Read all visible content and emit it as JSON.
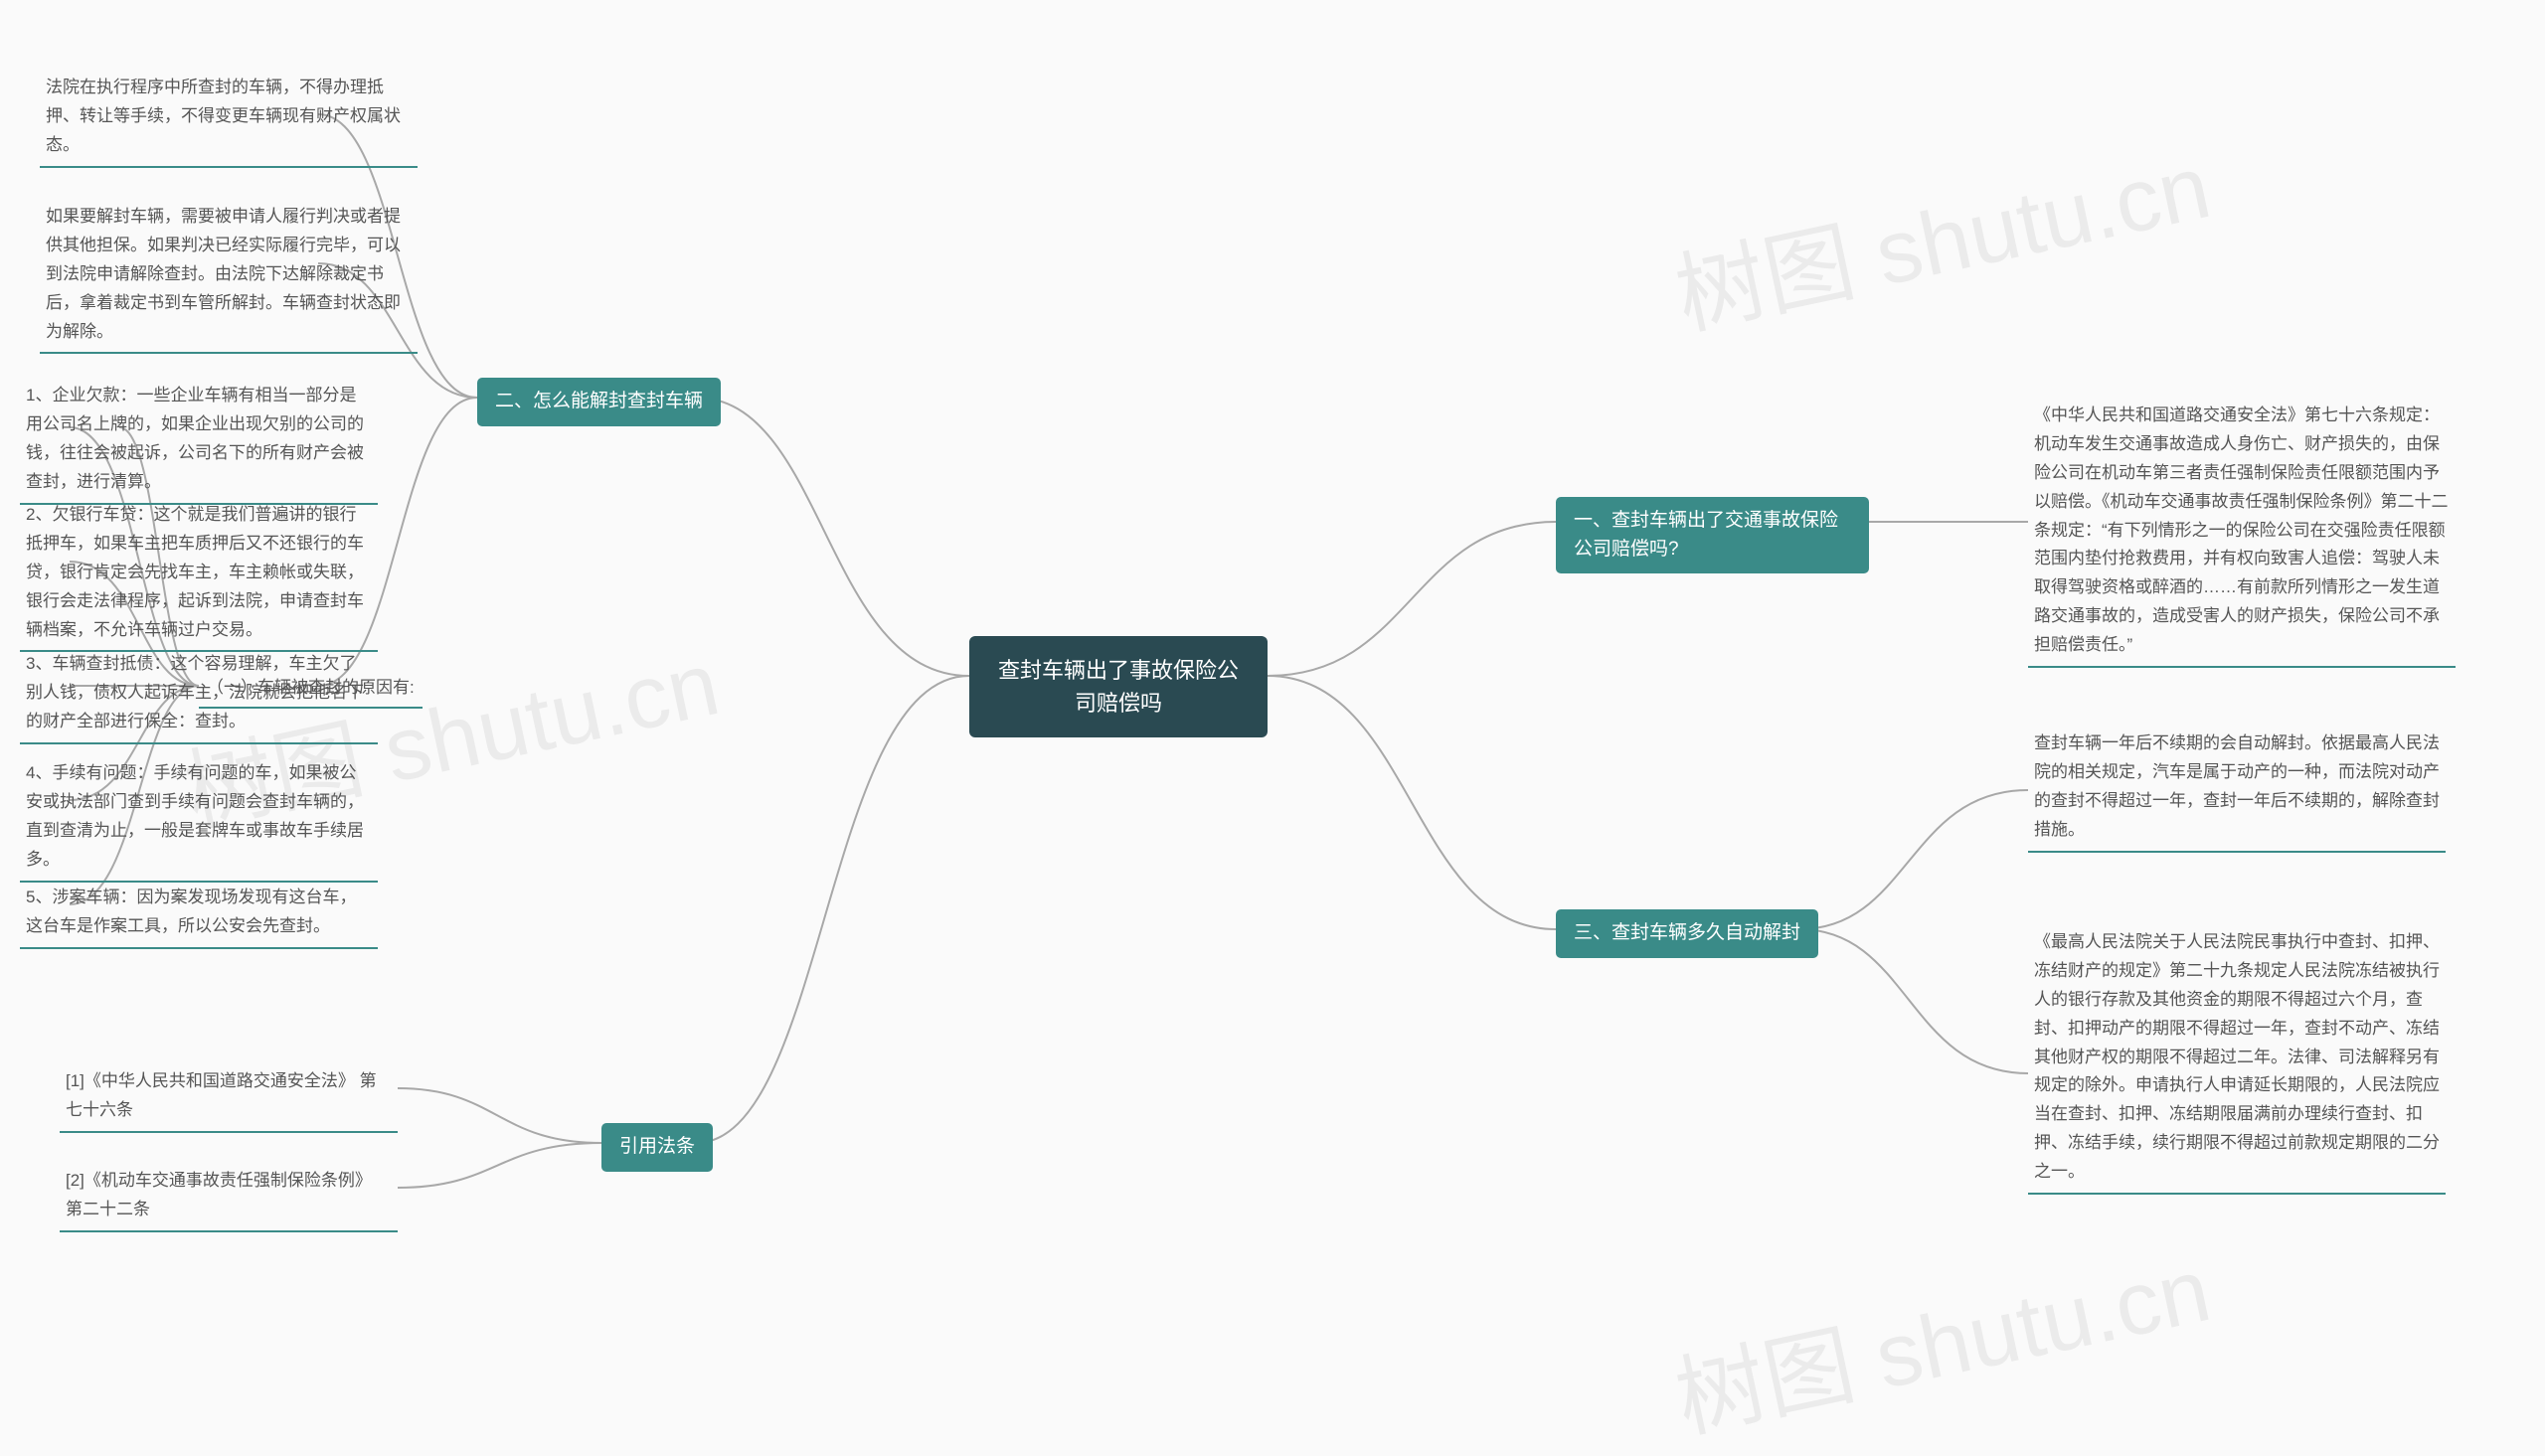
{
  "root": {
    "title": "查封车辆出了事故保险公司赔偿吗"
  },
  "colors": {
    "root_bg": "#2a4a52",
    "branch_bg": "#3a8b88",
    "line": "#a8a8a8",
    "leaf_text": "#555555",
    "background": "#fafafa"
  },
  "watermark": "树图 shutu.cn",
  "branches": {
    "b1": {
      "label": "一、查封车辆出了交通事故保险公司赔偿吗?",
      "leaves": [
        "《中华人民共和国道路交通安全法》第七十六条规定：机动车发生交通事故造成人身伤亡、财产损失的，由保险公司在机动车第三者责任强制保险责任限额范围内予以赔偿。《机动车交通事故责任强制保险条例》第二十二条规定：“有下列情形之一的保险公司在交强险责任限额范围内垫付抢救费用，并有权向致害人追偿：驾驶人未取得驾驶资格或醉酒的……有前款所列情形之一发生道路交通事故的，造成受害人的财产损失，保险公司不承担赔偿责任。”"
      ]
    },
    "b2": {
      "label": "二、怎么能解封查封车辆",
      "leaves": [
        "法院在执行程序中所查封的车辆，不得办理抵押、转让等手续，不得变更车辆现有财产权属状态。",
        "如果要解封车辆，需要被申请人履行判决或者提供其他担保。如果判决已经实际履行完毕，可以到法院申请解除查封。由法院下达解除裁定书后，拿着裁定书到车管所解封。车辆查封状态即为解除。"
      ],
      "sub": {
        "label": "（一）车辆被查封的原因有:",
        "leaves": [
          "1、企业欠款：一些企业车辆有相当一部分是用公司名上牌的，如果企业出现欠别的公司的钱，往往会被起诉，公司名下的所有财产会被查封，进行清算。",
          "2、欠银行车贷：这个就是我们普遍讲的银行抵押车，如果车主把车质押后又不还银行的车贷，银行肯定会先找车主，车主赖帐或失联，银行会走法律程序，起诉到法院，申请查封车辆档案，不允许车辆过户交易。",
          "3、车辆查封抵债：这个容易理解，车主欠了别人钱，债权人起诉车主，法院就会把他名下的财产全部进行保全：查封。",
          "4、手续有问题：手续有问题的车，如果被公安或执法部门查到手续有问题会查封车辆的，直到查清为止，一般是套牌车或事故车手续居多。",
          "5、涉案车辆：因为案发现场发现有这台车，这台车是作案工具，所以公安会先查封。"
        ]
      }
    },
    "b3": {
      "label": "三、查封车辆多久自动解封",
      "leaves": [
        "查封车辆一年后不续期的会自动解封。依据最高人民法院的相关规定，汽车是属于动产的一种，而法院对动产的查封不得超过一年，查封一年后不续期的，解除查封措施。",
        "《最高人民法院关于人民法院民事执行中查封、扣押、冻结财产的规定》第二十九条规定人民法院冻结被执行人的银行存款及其他资金的期限不得超过六个月，查封、扣押动产的期限不得超过一年，查封不动产、冻结其他财产权的期限不得超过二年。法律、司法解释另有规定的除外。申请执行人申请延长期限的，人民法院应当在查封、扣押、冻结期限届满前办理续行查封、扣押、冻结手续，续行期限不得超过前款规定期限的二分之一。"
      ]
    },
    "b4": {
      "label": "引用法条",
      "leaves": [
        "[1]《中华人民共和国道路交通安全法》 第七十六条",
        "[2]《机动车交通事故责任强制保险条例》 第二十二条"
      ]
    }
  }
}
